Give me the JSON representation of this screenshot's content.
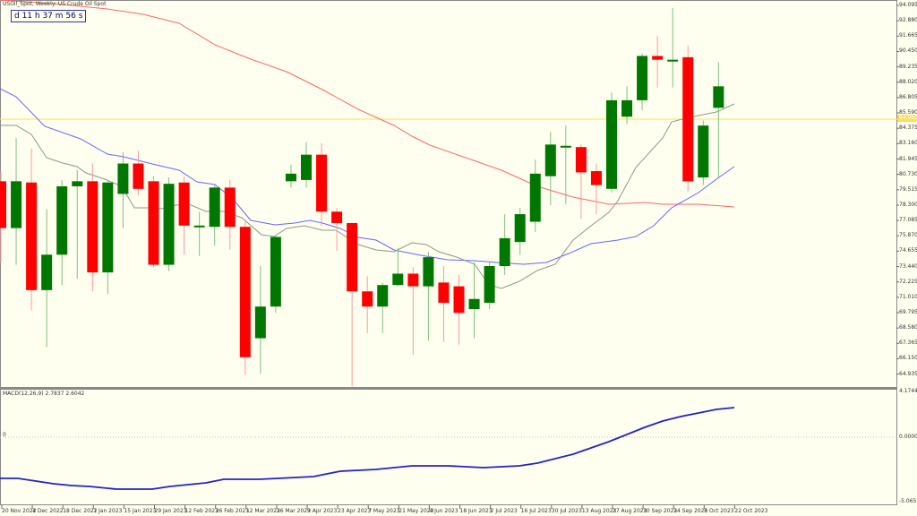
{
  "header": {
    "title": "USOil_Spot, Weekly:  US Crude Oil Spot",
    "countdown": "d 11 h 37 m 56 s"
  },
  "price_axis": [
    "94.095",
    "92.880",
    "91.665",
    "90.450",
    "89.235",
    "88.020",
    "86.805",
    "85.590",
    "84.375",
    "83.160",
    "81.945",
    "80.730",
    "79.515",
    "78.300",
    "77.085",
    "75.870",
    "74.655",
    "73.440",
    "72.225",
    "71.010",
    "69.795",
    "68.580",
    "67.365",
    "66.150",
    "64.935"
  ],
  "current_price": "84.993",
  "macd": {
    "label": "MACD(12,26,9) 2.7837 2.6042",
    "axis": [
      "4.1744",
      "0.0000",
      "-5.0651"
    ],
    "zero_label": "0"
  },
  "time_axis": [
    "20 Nov 2022",
    "4 Dec 2022",
    "18 Dec 2022",
    "1 Jan 2023",
    "15 Jan 2023",
    "29 Jan 2023",
    "12 Feb 2023",
    "26 Feb 2023",
    "12 Mar 2023",
    "26 Mar 2023",
    "9 Apr 2023",
    "23 Apr 2023",
    "7 May 2023",
    "21 May 2023",
    "4 Jun 2023",
    "18 Jun 2023",
    "2 Jul 2023",
    "16 Jul 2023",
    "30 Jul 2023",
    "13 Aug 2023",
    "27 Aug 2023",
    "10 Sep 2023",
    "24 Sep 2023",
    "8 Oct 2023",
    "22 Oct 2023"
  ],
  "colors": {
    "background": "#fffff0",
    "bull": "#007700",
    "bear": "#ff0000",
    "ma_fast": "#889988",
    "ma_mid": "#6666ff",
    "ma_slow": "#ff6666",
    "macd": "#2222cc",
    "price_line": "#ffdd55"
  },
  "chart_data": [
    {
      "type": "candlestick",
      "title": "USOil_Spot, Weekly: US Crude Oil Spot",
      "ylim": [
        64.0,
        94.5
      ],
      "x": [
        "20 Nov 2022",
        "27 Nov 2022",
        "4 Dec 2022",
        "11 Dec 2022",
        "18 Dec 2022",
        "25 Dec 2022",
        "1 Jan 2023",
        "8 Jan 2023",
        "15 Jan 2023",
        "22 Jan 2023",
        "29 Jan 2023",
        "5 Feb 2023",
        "12 Feb 2023",
        "19 Feb 2023",
        "26 Feb 2023",
        "5 Mar 2023",
        "12 Mar 2023",
        "19 Mar 2023",
        "26 Mar 2023",
        "2 Apr 2023",
        "9 Apr 2023",
        "16 Apr 2023",
        "23 Apr 2023",
        "30 Apr 2023",
        "7 May 2023",
        "14 May 2023",
        "21 May 2023",
        "28 May 2023",
        "4 Jun 2023",
        "11 Jun 2023",
        "18 Jun 2023",
        "25 Jun 2023",
        "2 Jul 2023",
        "9 Jul 2023",
        "16 Jul 2023",
        "23 Jul 2023",
        "30 Jul 2023",
        "6 Aug 2023",
        "13 Aug 2023",
        "20 Aug 2023",
        "27 Aug 2023",
        "3 Sep 2023",
        "10 Sep 2023",
        "17 Sep 2023",
        "24 Sep 2023",
        "1 Oct 2023",
        "8 Oct 2023",
        "15 Oct 2023"
      ],
      "ohlc": [
        [
          80.2,
          76.5,
          81.0,
          73.8
        ],
        [
          76.5,
          80.2,
          83.6,
          73.6
        ],
        [
          80.1,
          71.6,
          82.8,
          70.0
        ],
        [
          71.6,
          74.4,
          78.0,
          67.1
        ],
        [
          74.4,
          79.8,
          80.3,
          72.0
        ],
        [
          79.8,
          80.2,
          81.1,
          72.5
        ],
        [
          80.2,
          73.0,
          81.6,
          71.5
        ],
        [
          73.0,
          80.1,
          80.3,
          71.3
        ],
        [
          79.2,
          81.6,
          82.5,
          76.5
        ],
        [
          81.6,
          79.6,
          82.6,
          79.1
        ],
        [
          80.2,
          73.6,
          80.6,
          73.4
        ],
        [
          73.6,
          80.0,
          80.5,
          73.1
        ],
        [
          80.1,
          76.7,
          80.6,
          74.4
        ],
        [
          76.7,
          76.7,
          77.8,
          74.3
        ],
        [
          76.6,
          79.7,
          79.9,
          75.1
        ],
        [
          79.7,
          76.6,
          80.3,
          74.8
        ],
        [
          76.6,
          66.3,
          77.0,
          64.9
        ],
        [
          67.8,
          70.3,
          73.5,
          65.0
        ],
        [
          70.3,
          75.8,
          75.9,
          69.8
        ],
        [
          80.2,
          80.8,
          81.5,
          79.7
        ],
        [
          80.3,
          82.3,
          83.3,
          79.7
        ],
        [
          82.3,
          77.8,
          83.2,
          76.7
        ],
        [
          77.8,
          76.9,
          78.1,
          74.7
        ],
        [
          76.9,
          71.5,
          76.9,
          64.0
        ],
        [
          71.5,
          70.3,
          72.7,
          68.2
        ],
        [
          70.3,
          72.0,
          72.2,
          68.2
        ],
        [
          72.0,
          72.9,
          74.9,
          71.9
        ],
        [
          72.9,
          71.9,
          73.4,
          66.5
        ],
        [
          71.9,
          74.2,
          74.6,
          67.6
        ],
        [
          72.2,
          70.6,
          73.5,
          67.5
        ],
        [
          71.9,
          69.8,
          72.8,
          67.3
        ],
        [
          70.1,
          70.9,
          73.8,
          67.8
        ],
        [
          70.6,
          73.5,
          73.9,
          70.1
        ],
        [
          73.5,
          75.7,
          77.6,
          72.8
        ],
        [
          75.4,
          77.6,
          78.1,
          74.4
        ],
        [
          77.0,
          80.8,
          81.9,
          76.2
        ],
        [
          80.6,
          83.1,
          84.1,
          78.3
        ],
        [
          83.0,
          83.0,
          84.6,
          78.4
        ],
        [
          82.9,
          80.9,
          83.1,
          77.2
        ],
        [
          81.0,
          79.9,
          81.6,
          77.6
        ],
        [
          79.6,
          86.6,
          87.2,
          79.3
        ],
        [
          85.3,
          86.6,
          87.7,
          84.7
        ],
        [
          86.6,
          90.1,
          90.3,
          85.8
        ],
        [
          90.1,
          89.8,
          91.7,
          87.6
        ],
        [
          89.8,
          89.8,
          93.9,
          87.6
        ],
        [
          90.0,
          80.2,
          90.9,
          79.4
        ],
        [
          80.5,
          84.6,
          85.0,
          79.9
        ],
        [
          86.0,
          87.7,
          89.6,
          80.5
        ]
      ],
      "series": [
        {
          "name": "MA fast (gray)",
          "color": "#889988"
        },
        {
          "name": "MA mid (blue)",
          "color": "#6666ff"
        },
        {
          "name": "MA slow (red)",
          "color": "#ff6666"
        }
      ],
      "current_price": 84.993,
      "xlabel": "",
      "ylabel": ""
    },
    {
      "type": "line",
      "title": "MACD(12,26,9) 2.7837 2.6042",
      "ylim": [
        -5.0651,
        4.1744
      ],
      "series": [
        {
          "name": "MACD",
          "values": [
            -2.35,
            -2.55,
            -2.75,
            -3.1,
            -3.15,
            -3.05,
            -2.7,
            -2.35,
            -2.3,
            -2.05,
            -1.85,
            -1.6,
            -1.5,
            -1.55,
            -1.5,
            -1.3,
            -0.8,
            0.0,
            0.9,
            1.75,
            2.3,
            2.78
          ]
        }
      ]
    }
  ]
}
